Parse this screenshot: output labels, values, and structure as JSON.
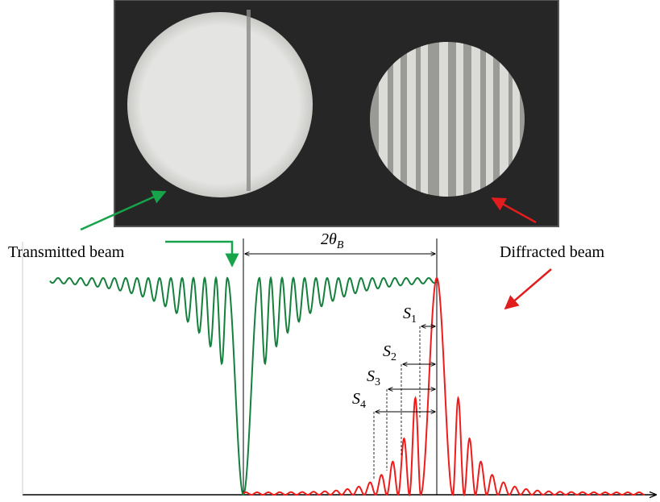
{
  "labels": {
    "transmitted": "Transmitted beam",
    "diffracted": "Diffracted beam"
  },
  "angle": {
    "base": "2θ",
    "sub": "B"
  },
  "spacings": [
    {
      "base": "S",
      "sub": "1"
    },
    {
      "base": "S",
      "sub": "2"
    },
    {
      "base": "S",
      "sub": "3"
    },
    {
      "base": "S",
      "sub": "4"
    }
  ]
}
